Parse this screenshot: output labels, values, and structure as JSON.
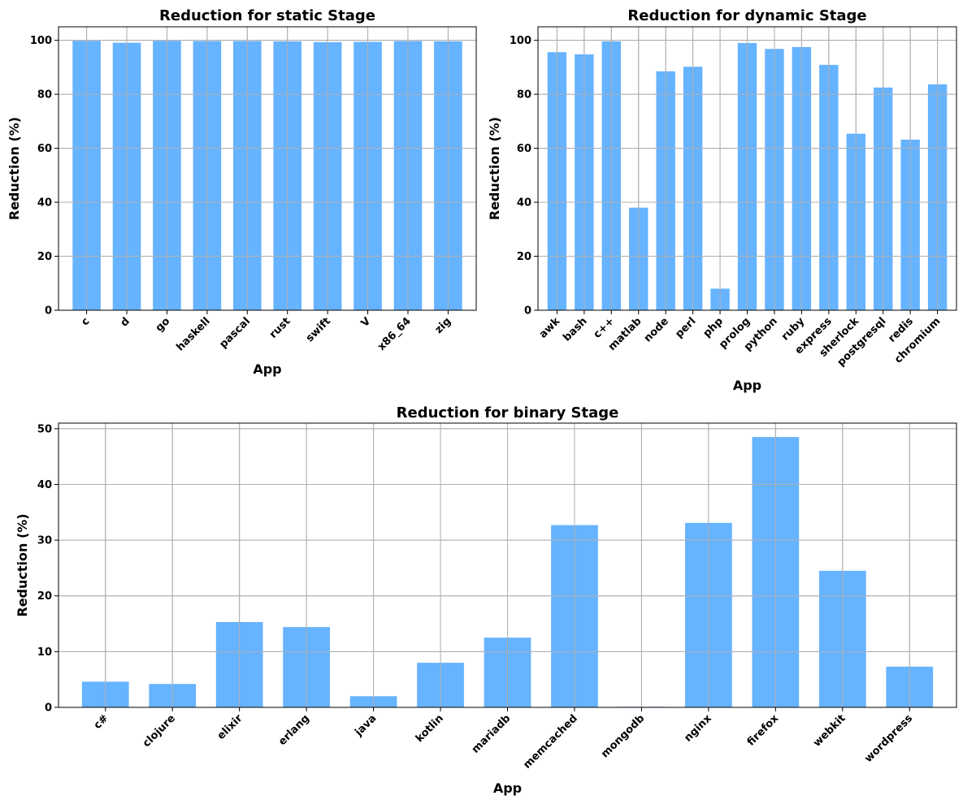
{
  "chart_data": [
    {
      "type": "bar",
      "title": "Reduction for static Stage",
      "xlabel": "App",
      "ylabel": "Reduction (%)",
      "ylim": [
        0,
        105
      ],
      "yticks": [
        0,
        20,
        40,
        60,
        80,
        100
      ],
      "grid": true,
      "bar_color": "#66b3ff",
      "categories": [
        "c",
        "d",
        "go",
        "haskell",
        "pascal",
        "rust",
        "swift",
        "V",
        "x86_64",
        "zig"
      ],
      "values": [
        99.8,
        99.1,
        99.8,
        99.7,
        99.7,
        99.6,
        99.3,
        99.4,
        99.7,
        99.6
      ]
    },
    {
      "type": "bar",
      "title": "Reduction for dynamic Stage",
      "xlabel": "App",
      "ylabel": "Reduction (%)",
      "ylim": [
        0,
        105
      ],
      "yticks": [
        0,
        20,
        40,
        60,
        80,
        100
      ],
      "grid": true,
      "bar_color": "#66b3ff",
      "categories": [
        "awk",
        "bash",
        "c++",
        "matlab",
        "node",
        "perl",
        "php",
        "prolog",
        "python",
        "ruby",
        "express",
        "sherlock",
        "postgresql",
        "redis",
        "chromium"
      ],
      "values": [
        95.6,
        94.8,
        99.6,
        38.0,
        88.5,
        90.2,
        8.0,
        99.0,
        96.8,
        97.5,
        90.9,
        65.4,
        82.5,
        63.2,
        83.7
      ]
    },
    {
      "type": "bar",
      "title": "Reduction for binary Stage",
      "xlabel": "App",
      "ylabel": "Reduction (%)",
      "ylim": [
        0,
        51
      ],
      "yticks": [
        0,
        10,
        20,
        30,
        40,
        50
      ],
      "grid": true,
      "bar_color": "#66b3ff",
      "categories": [
        "c#",
        "clojure",
        "elixir",
        "erlang",
        "java",
        "kotlin",
        "mariadb",
        "memcached",
        "mongodb",
        "nginx",
        "firefox",
        "webkit",
        "wordpress"
      ],
      "values": [
        4.6,
        4.2,
        15.3,
        14.4,
        2.0,
        8.0,
        12.5,
        32.7,
        0.1,
        33.1,
        48.5,
        24.5,
        7.3
      ]
    }
  ]
}
